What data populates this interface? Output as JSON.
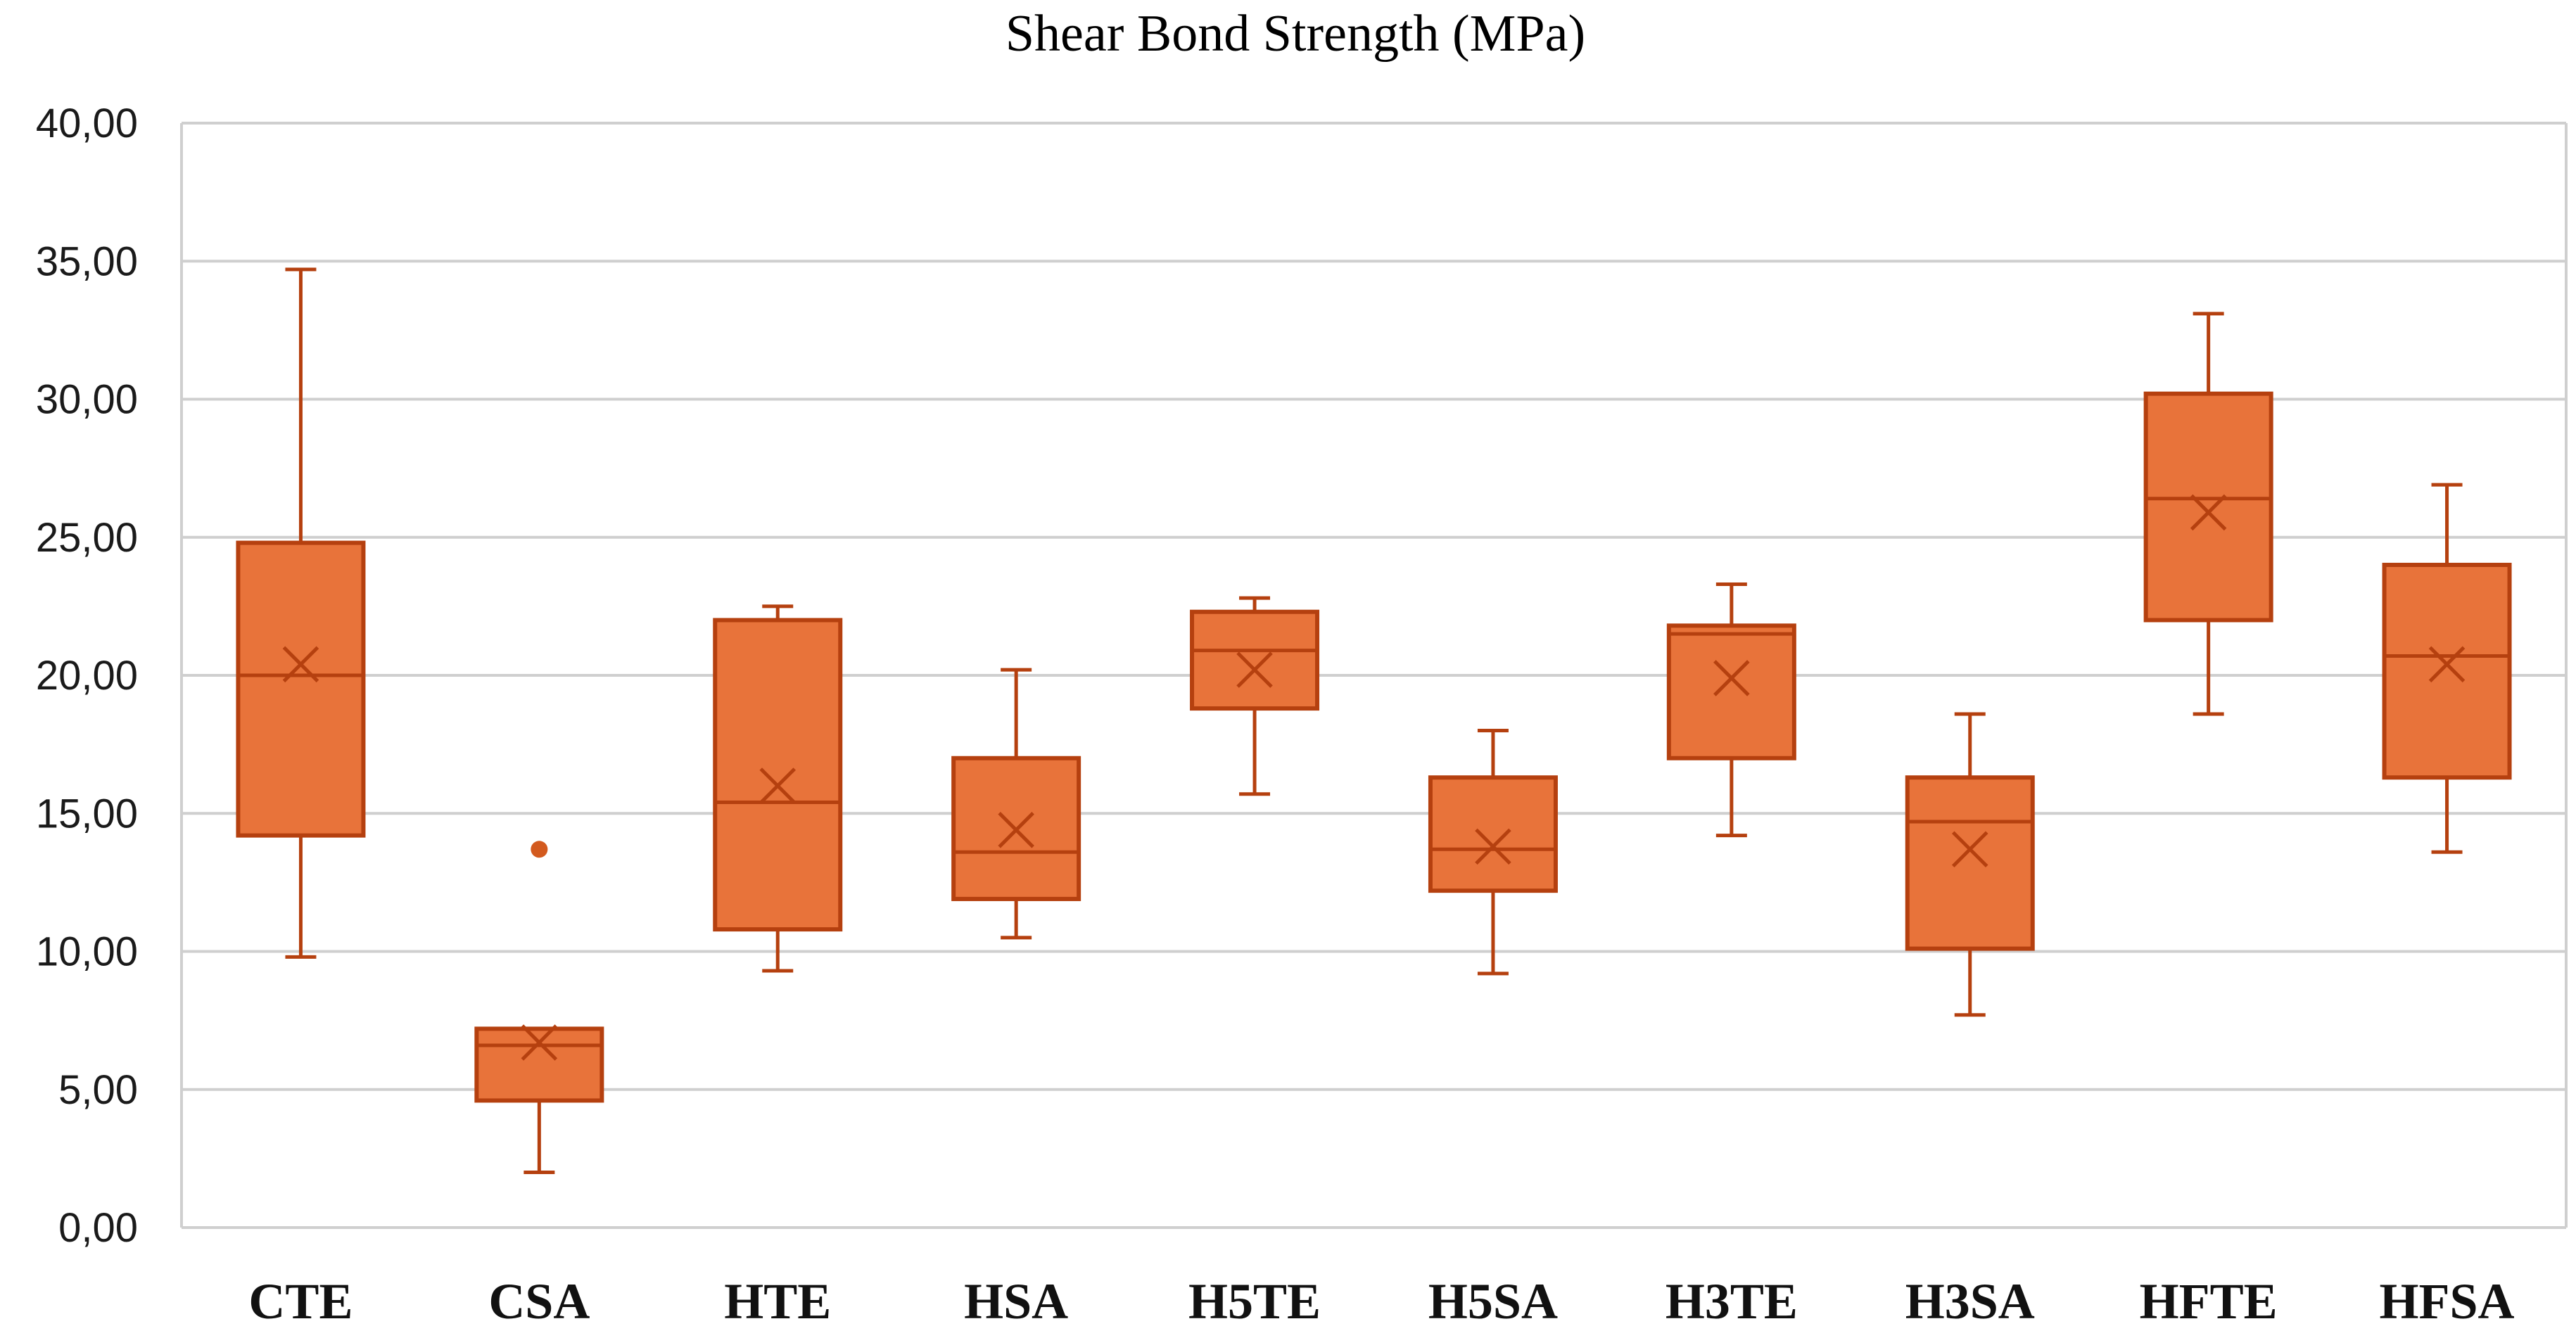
{
  "chart_data": {
    "type": "boxplot",
    "title": "Shear Bond Strength (MPa)",
    "xlabel": "",
    "ylabel": "",
    "ylim": [
      0,
      40
    ],
    "y_ticks": [
      0,
      5,
      10,
      15,
      20,
      25,
      30,
      35,
      40
    ],
    "y_tick_labels": [
      "0,00",
      "5,00",
      "10,00",
      "15,00",
      "20,00",
      "25,00",
      "30,00",
      "35,00",
      "40,00"
    ],
    "grid": true,
    "legend": "none",
    "categories": [
      "CTE",
      "CSA",
      "HTE",
      "HSA",
      "H5TE",
      "H5SA",
      "H3TE",
      "H3SA",
      "HFTE",
      "HFSA"
    ],
    "boxes": [
      {
        "name": "CTE",
        "min": 9.8,
        "q1": 14.2,
        "median": 20.0,
        "q3": 24.8,
        "max": 34.7,
        "mean": 20.4,
        "outliers": []
      },
      {
        "name": "CSA",
        "min": 2.0,
        "q1": 4.6,
        "median": 6.6,
        "q3": 7.2,
        "max": 7.2,
        "mean": 6.7,
        "outliers": [
          13.7
        ]
      },
      {
        "name": "HTE",
        "min": 9.3,
        "q1": 10.8,
        "median": 15.4,
        "q3": 22.0,
        "max": 22.5,
        "mean": 16.0,
        "outliers": []
      },
      {
        "name": "HSA",
        "min": 10.5,
        "q1": 11.9,
        "median": 13.6,
        "q3": 17.0,
        "max": 20.2,
        "mean": 14.4,
        "outliers": []
      },
      {
        "name": "H5TE",
        "min": 15.7,
        "q1": 18.8,
        "median": 20.9,
        "q3": 22.3,
        "max": 22.8,
        "mean": 20.2,
        "outliers": []
      },
      {
        "name": "H5SA",
        "min": 9.2,
        "q1": 12.2,
        "median": 13.7,
        "q3": 16.3,
        "max": 18.0,
        "mean": 13.8,
        "outliers": []
      },
      {
        "name": "H3TE",
        "min": 14.2,
        "q1": 17.0,
        "median": 21.5,
        "q3": 21.8,
        "max": 23.3,
        "mean": 19.9,
        "outliers": []
      },
      {
        "name": "H3SA",
        "min": 7.7,
        "q1": 10.1,
        "median": 14.7,
        "q3": 16.3,
        "max": 18.6,
        "mean": 13.7,
        "outliers": []
      },
      {
        "name": "HFTE",
        "min": 18.6,
        "q1": 22.0,
        "median": 26.4,
        "q3": 30.2,
        "max": 33.1,
        "mean": 25.9,
        "outliers": []
      },
      {
        "name": "HFSA",
        "min": 13.6,
        "q1": 16.3,
        "median": 20.7,
        "q3": 24.0,
        "max": 26.9,
        "mean": 20.4,
        "outliers": []
      }
    ],
    "colors": {
      "box_fill": "#e8733a",
      "box_edge": "#b5400f",
      "whisker": "#b5400f",
      "mean_marker": "#b5400f",
      "outlier": "#d35a1e",
      "gridline": "#cfcfcf"
    }
  }
}
